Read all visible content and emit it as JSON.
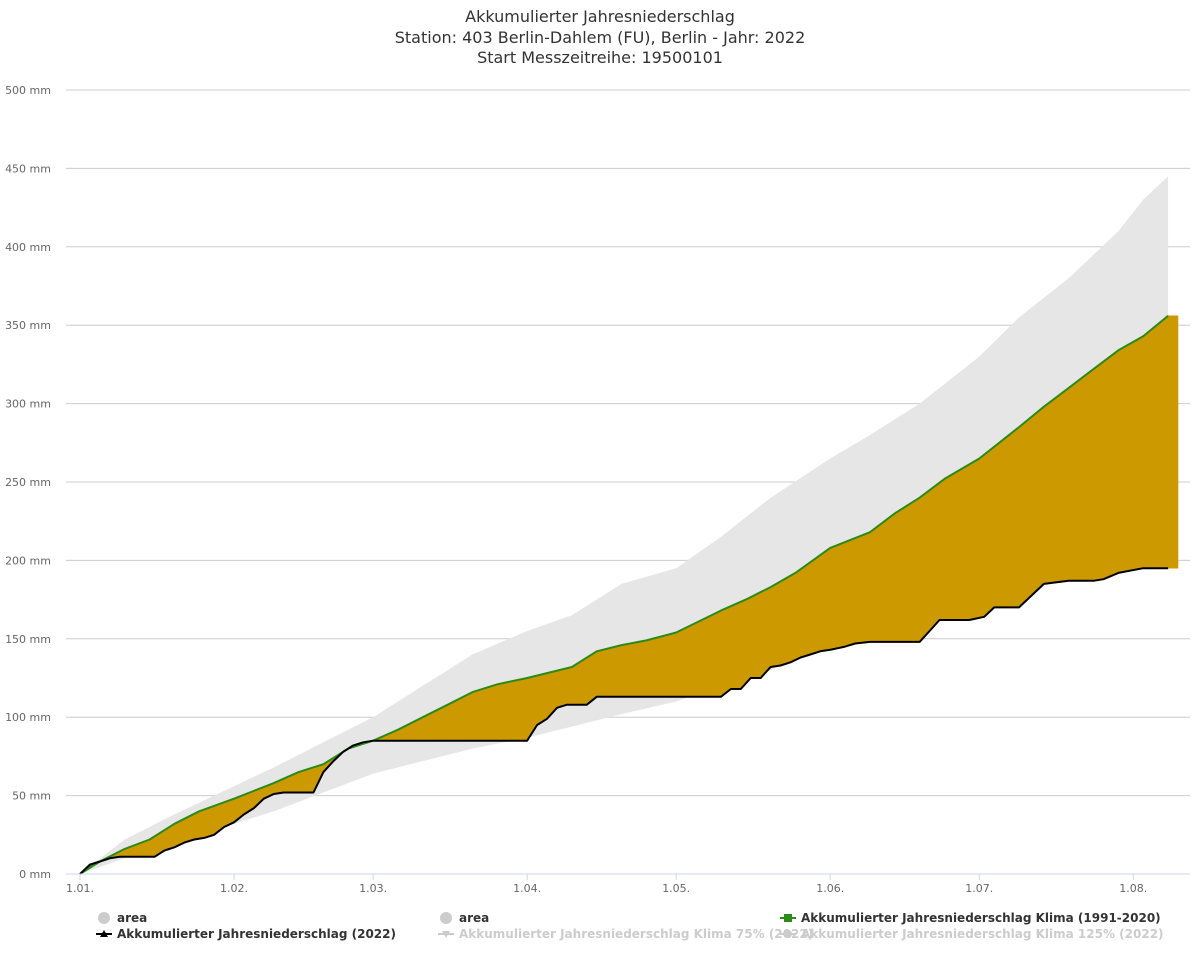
{
  "chart_data": {
    "type": "area",
    "title": [
      "Akkumulierter Jahresniederschlag",
      "Station: 403 Berlin-Dahlem (FU), Berlin - Jahr: 2022",
      "Start Messzeitreihe: 19500101"
    ],
    "ylabel": "",
    "xlabel": "",
    "ylim": [
      0,
      500
    ],
    "y_unit": "mm",
    "y_ticks": [
      "0 mm",
      "50 mm",
      "100 mm",
      "150 mm",
      "200 mm",
      "250 mm",
      "300 mm",
      "350 mm",
      "400 mm",
      "450 mm",
      "500 mm"
    ],
    "x_ticks": [
      "1.01.",
      "1.02.",
      "1.03.",
      "1.04.",
      "1.05.",
      "1.06.",
      "1.07.",
      "1.08."
    ],
    "x_tick_day": [
      1,
      32,
      60,
      91,
      121,
      152,
      182,
      213
    ],
    "x_range_day": [
      1,
      222
    ],
    "grid": true,
    "legend_position": "bottom",
    "colors": {
      "band": "#e6e6e6",
      "klima": "#2a8a1a",
      "jahr": "#000000",
      "deficit_fill": "#cc9a00",
      "surplus_fill": "#1f8a1f",
      "hidden": "#cccccc",
      "grid": "#cccccc"
    },
    "series": [
      {
        "name": "Akkumulierter Jahresniederschlag Klima (1991-2020)",
        "x": [
          1,
          5,
          10,
          15,
          20,
          25,
          32,
          40,
          45,
          50,
          55,
          60,
          65,
          70,
          75,
          80,
          85,
          91,
          100,
          105,
          110,
          115,
          121,
          130,
          135,
          140,
          145,
          152,
          160,
          165,
          170,
          175,
          182,
          190,
          195,
          200,
          205,
          210,
          215,
          220
        ],
        "y": [
          0,
          8,
          16,
          22,
          32,
          40,
          48,
          58,
          65,
          70,
          80,
          85,
          92,
          100,
          108,
          116,
          121,
          125,
          132,
          142,
          146,
          149,
          154,
          168,
          175,
          183,
          192,
          208,
          218,
          230,
          240,
          252,
          265,
          285,
          298,
          310,
          322,
          334,
          343,
          356
        ]
      },
      {
        "name": "Akkumulierter Jahresniederschlag (2022)",
        "x": [
          1,
          3,
          5,
          7,
          9,
          11,
          13,
          16,
          18,
          20,
          22,
          24,
          26,
          28,
          30,
          32,
          34,
          36,
          38,
          40,
          42,
          44,
          46,
          48,
          50,
          52,
          54,
          56,
          58,
          60,
          65,
          70,
          80,
          91,
          93,
          95,
          97,
          99,
          101,
          103,
          105,
          110,
          115,
          121,
          125,
          130,
          132,
          134,
          136,
          138,
          140,
          142,
          144,
          146,
          148,
          150,
          152,
          155,
          157,
          160,
          165,
          170,
          172,
          174,
          176,
          180,
          183,
          185,
          187,
          190,
          195,
          200,
          202,
          205,
          207,
          210,
          215,
          220
        ],
        "y": [
          0,
          6,
          8,
          10,
          11,
          11,
          11,
          11,
          15,
          17,
          20,
          22,
          23,
          25,
          30,
          33,
          38,
          42,
          48,
          51,
          52,
          52,
          52,
          52,
          65,
          72,
          78,
          82,
          84,
          85,
          85,
          85,
          85,
          85,
          95,
          99,
          106,
          108,
          108,
          108,
          113,
          113,
          113,
          113,
          113,
          113,
          118,
          118,
          125,
          125,
          132,
          133,
          135,
          138,
          140,
          142,
          143,
          145,
          147,
          148,
          148,
          148,
          155,
          162,
          162,
          162,
          164,
          170,
          170,
          170,
          185,
          187,
          187,
          187,
          188,
          192,
          195,
          195
        ]
      }
    ],
    "band": {
      "name": "area",
      "x": [
        1,
        10,
        20,
        32,
        40,
        50,
        60,
        70,
        80,
        91,
        100,
        110,
        121,
        130,
        140,
        152,
        160,
        170,
        182,
        190,
        200,
        210,
        215,
        220
      ],
      "low": [
        0,
        10,
        20,
        32,
        40,
        52,
        64,
        72,
        80,
        87,
        94,
        102,
        110,
        120,
        130,
        148,
        158,
        170,
        184,
        196,
        204,
        220,
        240,
        267
      ],
      "high": [
        0,
        22,
        38,
        56,
        68,
        84,
        100,
        120,
        140,
        155,
        165,
        185,
        195,
        215,
        240,
        265,
        280,
        300,
        330,
        355,
        380,
        410,
        430,
        445
      ]
    },
    "legend": [
      {
        "label": "area",
        "marker": "circle",
        "color": "#cccccc",
        "hidden": false
      },
      {
        "label": "Akkumulierter Jahresniederschlag (2022)",
        "marker": "triangle",
        "color": "#000000",
        "hidden": false
      },
      {
        "label": "area",
        "marker": "circle",
        "color": "#cccccc",
        "hidden": false
      },
      {
        "label": "Akkumulierter Jahresniederschlag Klima 75% (2022)",
        "marker": "triangle-down",
        "color": "#cccccc",
        "hidden": true
      },
      {
        "label": "Akkumulierter Jahresniederschlag Klima (1991-2020)",
        "marker": "square",
        "color": "#2a8a1a",
        "hidden": false
      },
      {
        "label": "Akkumulierter Jahresniederschlag Klima 125% (2022)",
        "marker": "circle",
        "color": "#cccccc",
        "hidden": true
      }
    ]
  }
}
